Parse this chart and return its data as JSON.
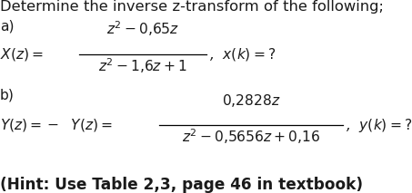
{
  "title": "Determine the inverse z-transform of the following;",
  "label_a": "a)",
  "label_b": "b)",
  "xz_left": "X(z) = ",
  "xz_num": "$z^2 - 0{,}65z$",
  "xz_den": "$z^2 - 1{,}6z+1$",
  "xz_right": ",  x(k) = ?",
  "yz_left": "Y(z) = –  Y(z) = ",
  "yz_num": "$0{,}2828z$",
  "yz_den": "$z^2 - 0{,}5656z + 0{,}16$",
  "yz_right": ",  y(k) = ?",
  "hint": "(Hint: Use Table 2,3, page 46 in textbook)",
  "bg_color": "#ffffff",
  "text_color": "#1a1a1a",
  "fontsize_title": 11.8,
  "fontsize_body": 11.2,
  "fontsize_hint": 12.2
}
